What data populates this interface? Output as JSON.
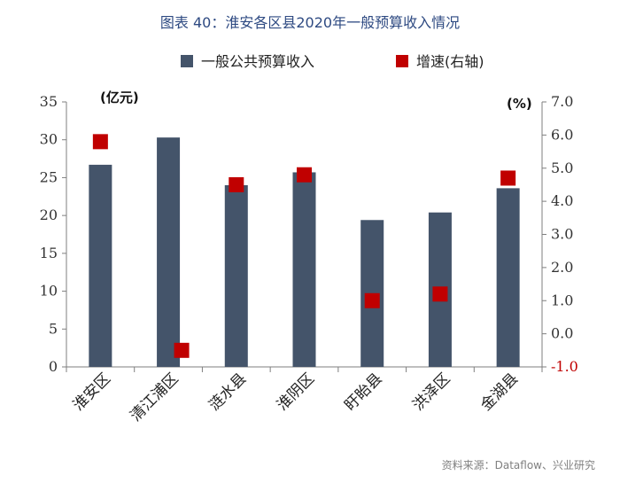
{
  "chart_data": {
    "type": "bar",
    "title": "图表 40：淮安各区县2020年一般预算收入情况",
    "categories": [
      "淮安区",
      "清江浦区",
      "涟水县",
      "淮阴区",
      "盱眙县",
      "洪泽区",
      "金湖县"
    ],
    "series": [
      {
        "name": "一般公共预算收入",
        "type": "bar",
        "axis": "left",
        "color": "#44546a",
        "values": [
          26.7,
          30.3,
          24.0,
          25.7,
          19.4,
          20.4,
          23.6
        ]
      },
      {
        "name": "增速(右轴)",
        "type": "scatter",
        "axis": "right",
        "color": "#c00000",
        "values": [
          5.8,
          -0.5,
          4.5,
          4.8,
          1.0,
          1.2,
          4.7
        ]
      }
    ],
    "left_axis": {
      "unit_label": "(亿元)",
      "min": 0,
      "max": 35,
      "ticks": [
        "0",
        "5",
        "10",
        "15",
        "20",
        "25",
        "30",
        "35"
      ]
    },
    "right_axis": {
      "unit_label": "(%)",
      "min": -1.0,
      "max": 7.0,
      "ticks": [
        "-1.0",
        "0.0",
        "1.0",
        "2.0",
        "3.0",
        "4.0",
        "5.0",
        "6.0",
        "7.0"
      ]
    },
    "legend": {
      "position": "top"
    },
    "grid": false
  },
  "source": "资料来源：Dataflow、兴业研究",
  "colors": {
    "title": "#2e4a82",
    "left_tick": "#333333",
    "right_tick_positive": "#333333",
    "right_tick_negative": "#c00000"
  }
}
